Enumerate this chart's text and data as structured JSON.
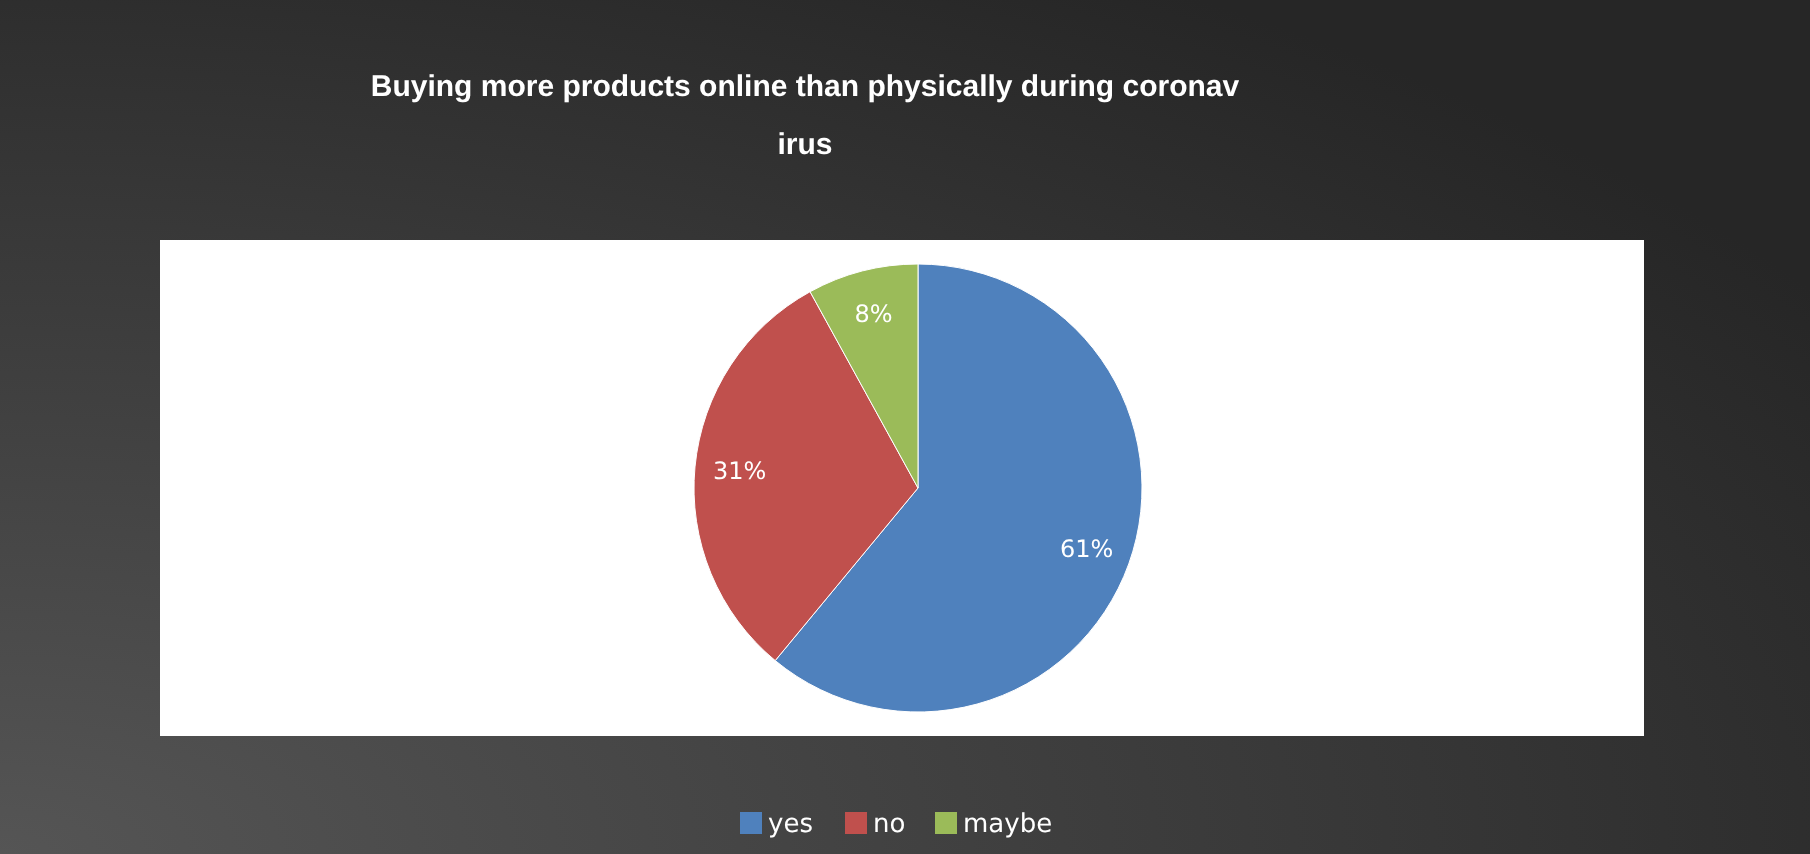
{
  "chart_data": {
    "type": "pie",
    "title": "Buying more products online than physically during coronav\nirus",
    "categories": [
      "yes",
      "no",
      "maybe"
    ],
    "values": [
      61,
      31,
      8
    ],
    "colors": [
      "#4f81bd",
      "#c0504d",
      "#9bbb59"
    ],
    "value_labels": [
      "61%",
      "31%",
      "8%"
    ],
    "legend": "bottom"
  }
}
